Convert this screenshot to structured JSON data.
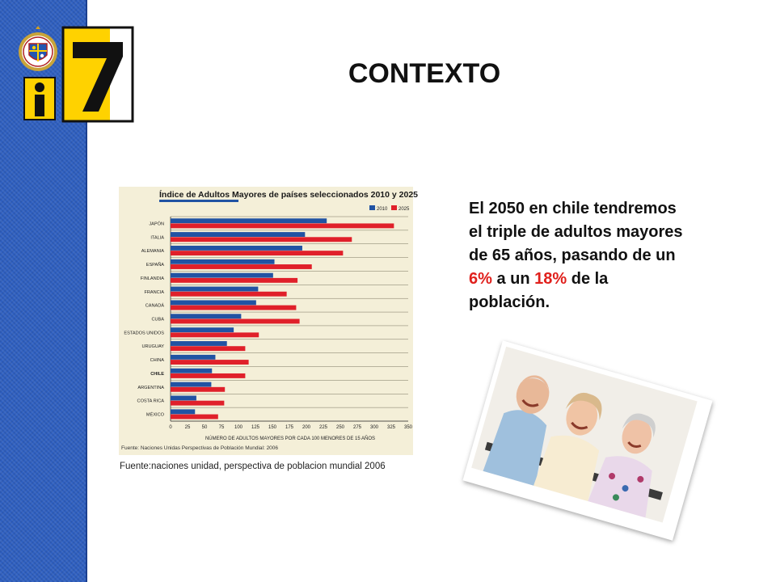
{
  "slide": {
    "title": "CONTEXTO",
    "body": {
      "part1": "El 2050 en chile tendremos el triple de adultos mayores de 65 años, pasando de un ",
      "highlight1": "6%",
      "part2": " a un ",
      "highlight2": "18%",
      "part3": " de la población."
    },
    "source_caption": "Fuente:naciones unidad, perspectiva de poblacion mundial 2006",
    "photo": "three-elderly-people-laughing"
  },
  "logo": {
    "mark": "i7",
    "seal": "university-seal-icon"
  },
  "colors": {
    "sidebar": "#2e5fc0",
    "accent_yellow": "#ffd200",
    "highlight_red": "#e0201c",
    "series_2010": "#2153a3",
    "series_2025": "#e0202a",
    "chart_bg": "#f4efd8"
  },
  "chart_data": {
    "type": "bar",
    "orientation": "horizontal",
    "title": "Índice de Adultos Mayores de países seleccionados 2010 y 2025",
    "xlabel": "NÚMERO DE ADULTOS MAYORES POR CADA 100 MENORES DE 15 AÑOS",
    "source": "Fuente: Naciones Unidas Perspectivas de Población Mundial: 2006",
    "categories": [
      "JAPÓN",
      "ITALIA",
      "ALEMANIA",
      "ESPAÑA",
      "FINLANDIA",
      "FRANCIA",
      "CANADÁ",
      "CUBA",
      "ESTADOS UNIDOS",
      "URUGUAY",
      "CHINA",
      "CHILE",
      "ARGENTINA",
      "COSTA RICA",
      "MÉXICO"
    ],
    "series": [
      {
        "name": "2010",
        "values": [
          230,
          198,
          194,
          153,
          151,
          129,
          126,
          104,
          93,
          83,
          66,
          61,
          60,
          38,
          36
        ]
      },
      {
        "name": "2025",
        "values": [
          329,
          267,
          254,
          208,
          187,
          171,
          185,
          190,
          130,
          110,
          115,
          110,
          80,
          79,
          70
        ]
      }
    ],
    "xlim": [
      0,
      350
    ],
    "xticks": [
      0,
      25,
      50,
      75,
      100,
      125,
      150,
      175,
      200,
      225,
      250,
      275,
      300,
      325,
      350
    ],
    "legend_position": "top-right",
    "highlighted_category": "CHILE",
    "grid": true
  }
}
